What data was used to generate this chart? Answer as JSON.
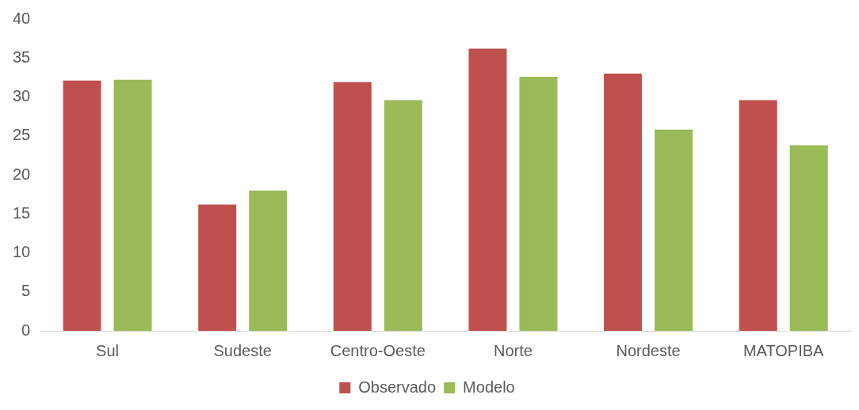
{
  "chart_data": {
    "type": "bar",
    "categories": [
      "Sul",
      "Sudeste",
      "Centro-Oeste",
      "Norte",
      "Nordeste",
      "MATOPIBA"
    ],
    "series": [
      {
        "name": "Observado",
        "color": "#c0504d",
        "values": [
          32.1,
          16.2,
          31.9,
          36.2,
          33.0,
          29.6
        ]
      },
      {
        "name": "Modelo",
        "color": "#9bbb59",
        "values": [
          32.2,
          18.0,
          29.6,
          32.6,
          25.8,
          23.8
        ]
      }
    ],
    "ylim": [
      0,
      40
    ],
    "yticks": [
      0,
      5,
      10,
      15,
      20,
      25,
      30,
      35,
      40
    ],
    "grid": false,
    "legend": "bottom"
  }
}
